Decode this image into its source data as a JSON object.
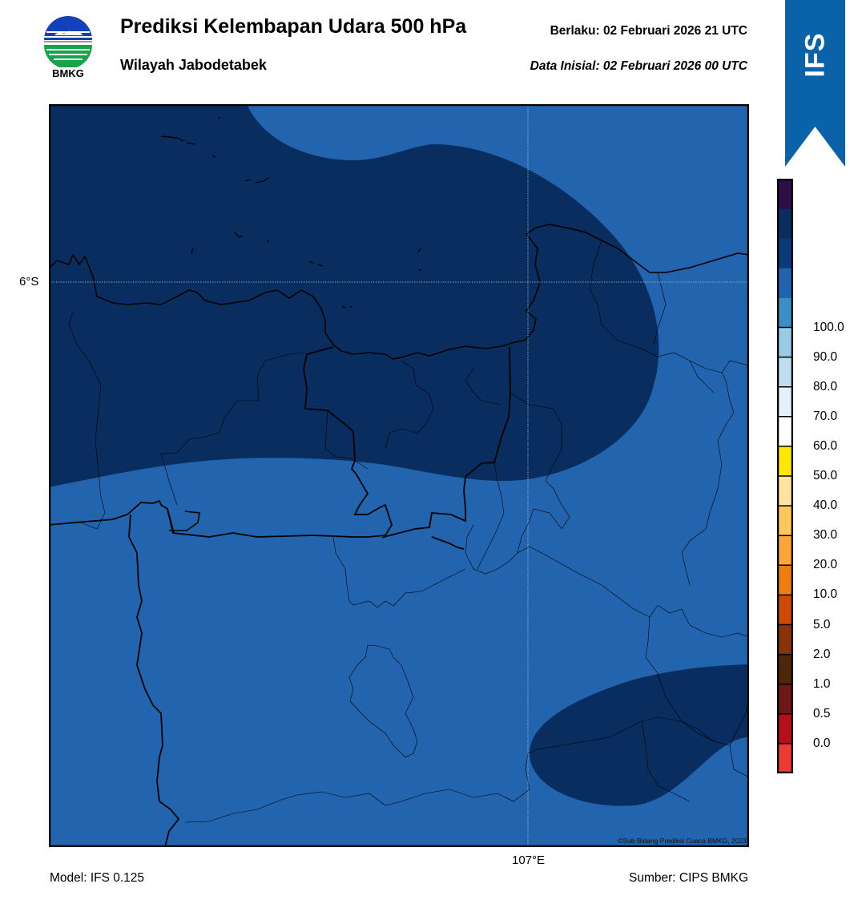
{
  "header": {
    "title": "Prediksi Kelembapan Udara 500 hPa",
    "subtitle": "Wilayah Jabodetabek",
    "valid": "Berlaku:  02 Februari 2026 21 UTC",
    "init": "Data Inisial:  02 Februari 2026 00 UTC"
  },
  "logo": {
    "text": "BMKG"
  },
  "ribbon": {
    "text": "IFS",
    "color": "#0a63a8"
  },
  "map": {
    "lat_label": "6°S",
    "lon_label": "107°E",
    "copyright": "©Sub Bidang Prediksi Cuaca BMKG, 2023",
    "fill_low": "#2264ad",
    "fill_high": "#082d5e"
  },
  "footer": {
    "model": "Model: IFS 0.125",
    "source": "Sumber: CIPS BMKG"
  },
  "colorbar": {
    "colors": [
      "#ee3b31",
      "#b5101a",
      "#6e1717",
      "#4d2708",
      "#883308",
      "#cc4a06",
      "#f07d10",
      "#fba53a",
      "#ffc85a",
      "#ffe3a0",
      "#ffe800",
      "#ffffff",
      "#e4eff8",
      "#bfdff0",
      "#97cbe6",
      "#3d8ec4",
      "#2264ad",
      "#0a3a78",
      "#082d5e",
      "#2c0d47"
    ],
    "labels": [
      "0.0",
      "0.5",
      "1.0",
      "2.0",
      "5.0",
      "10.0",
      "20.0",
      "30.0",
      "40.0",
      "50.0",
      "60.0",
      "70.0",
      "80.0",
      "90.0",
      "100.0"
    ]
  }
}
